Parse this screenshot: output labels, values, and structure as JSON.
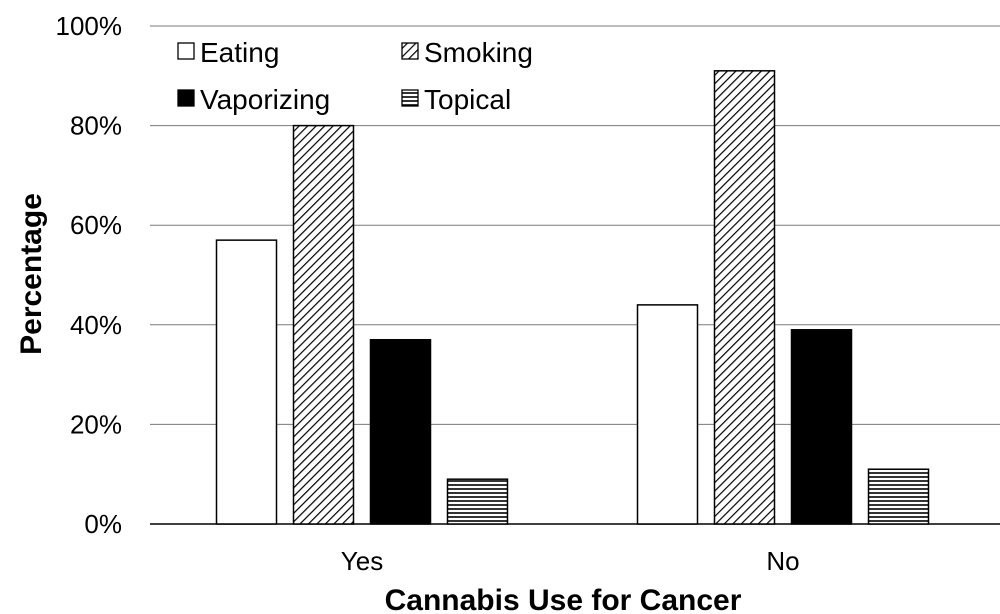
{
  "chart_data": {
    "type": "bar",
    "categories": [
      "Yes",
      "No"
    ],
    "series": [
      {
        "name": "Eating",
        "values": [
          57,
          44
        ],
        "fill": "white"
      },
      {
        "name": "Smoking",
        "values": [
          80,
          91
        ],
        "fill": "diagonal-hatch"
      },
      {
        "name": "Vaporizing",
        "values": [
          37,
          39
        ],
        "fill": "black"
      },
      {
        "name": "Topical",
        "values": [
          9,
          11
        ],
        "fill": "horizontal-hatch"
      }
    ],
    "xlabel": "Cannabis Use for Cancer",
    "ylabel": "Percentage",
    "ylim": [
      0,
      100
    ],
    "yticks": [
      "0%",
      "20%",
      "40%",
      "60%",
      "80%",
      "100%"
    ],
    "grid": true,
    "legend_position": "top-left"
  }
}
